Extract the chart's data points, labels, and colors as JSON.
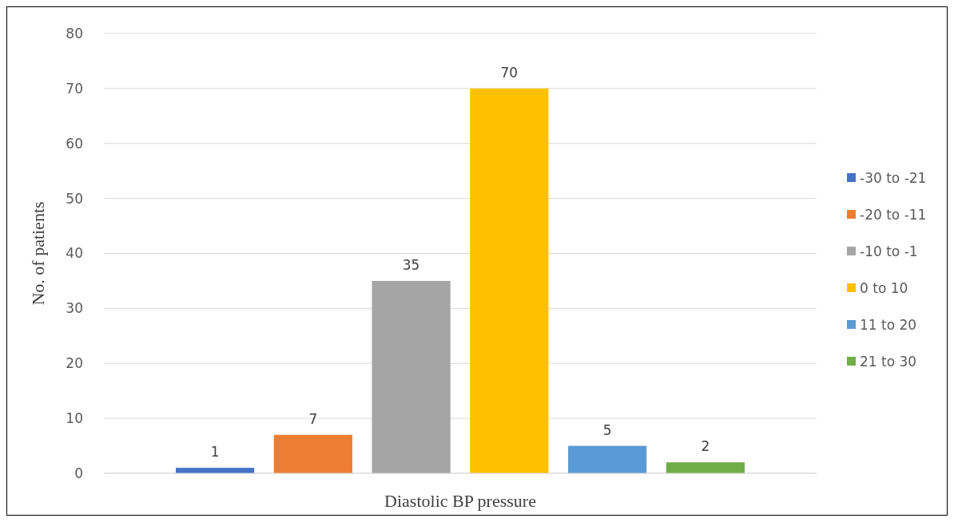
{
  "chart_data": {
    "type": "bar",
    "ylabel": "No. of patients",
    "categories": [
      "Diastolic BP pressure"
    ],
    "series": [
      {
        "name": "-30 to -21",
        "color": "#4472c4",
        "values": [
          1
        ]
      },
      {
        "name": "-20 to -11",
        "color": "#ed7d31",
        "values": [
          7
        ]
      },
      {
        "name": "-10 to -1",
        "color": "#a5a5a5",
        "values": [
          35
        ]
      },
      {
        "name": "0 to 10",
        "color": "#ffc000",
        "values": [
          70
        ]
      },
      {
        "name": "11 to 20",
        "color": "#5b9bd5",
        "values": [
          5
        ]
      },
      {
        "name": "21 to 30",
        "color": "#70ad47",
        "values": [
          2
        ]
      }
    ],
    "ylim": [
      0,
      80
    ],
    "yticks": [
      0,
      10,
      20,
      30,
      40,
      50,
      60,
      70,
      80
    ],
    "grid": "y",
    "legend": "right",
    "data_labels": true
  }
}
